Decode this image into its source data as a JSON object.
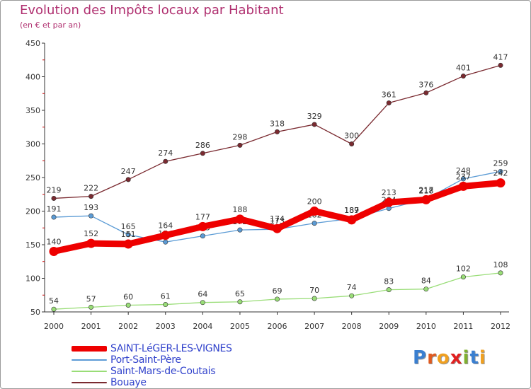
{
  "header": {
    "title": "Evolution des Impôts locaux par Habitant",
    "subtitle": "(en € et par an)"
  },
  "chart_data": {
    "type": "line",
    "title": "Evolution des Impôts locaux par Habitant",
    "subtitle": "(en € et par an)",
    "xlabel": "",
    "ylabel": "",
    "grid": false,
    "legend_position": "bottom-left",
    "categories": [
      "2000",
      "2001",
      "2002",
      "2003",
      "2004",
      "2005",
      "2006",
      "2007",
      "2008",
      "2009",
      "2010",
      "2011",
      "2012"
    ],
    "y_ticks": [
      50,
      100,
      150,
      200,
      250,
      300,
      350,
      400,
      450
    ],
    "ylim": [
      50,
      450
    ],
    "series": [
      {
        "name": "SAINT-LéGER-LES-VIGNES",
        "color": "#ee0000",
        "emphasis": "thick",
        "values": [
          140,
          152,
          151,
          164,
          177,
          188,
          174,
          200,
          187,
          213,
          217,
          237,
          242
        ],
        "labels": [
          "140",
          "152",
          "151",
          "164",
          "177",
          "188",
          "174",
          "200",
          "187",
          "213",
          "217",
          "237",
          "242"
        ]
      },
      {
        "name": "Port-Saint-Père",
        "color": "#5b9bd5",
        "emphasis": "thin",
        "values": [
          191,
          193,
          165,
          154,
          163,
          172,
          173,
          182,
          189,
          204,
          218,
          248,
          259
        ],
        "labels": [
          "191",
          "193",
          "165",
          "154",
          "163",
          "172",
          "173",
          "182",
          "189",
          "204",
          "218",
          "248",
          "259"
        ]
      },
      {
        "name": "Saint-Mars-de-Coutais",
        "color": "#99dd77",
        "emphasis": "thin",
        "values": [
          54,
          57,
          60,
          61,
          64,
          65,
          69,
          70,
          74,
          83,
          84,
          102,
          108
        ],
        "labels": [
          "54",
          "57",
          "60",
          "61",
          "64",
          "65",
          "69",
          "70",
          "74",
          "83",
          "84",
          "102",
          "108"
        ]
      },
      {
        "name": "Bouaye",
        "color": "#7a2a30",
        "emphasis": "thin",
        "values": [
          219,
          222,
          247,
          274,
          286,
          298,
          318,
          329,
          300,
          361,
          376,
          401,
          417
        ],
        "labels": [
          "219",
          "222",
          "247",
          "274",
          "286",
          "298",
          "318",
          "329",
          "300",
          "361",
          "376",
          "401",
          "417"
        ]
      }
    ]
  },
  "legend": {
    "items": [
      {
        "label": "SAINT-LéGER-LES-VIGNES",
        "color": "#ee0000"
      },
      {
        "label": "Port-Saint-Père",
        "color": "#5b9bd5"
      },
      {
        "label": "Saint-Mars-de-Coutais",
        "color": "#99dd77"
      },
      {
        "label": "Bouaye",
        "color": "#7a2a30"
      }
    ]
  },
  "logo": {
    "text": "Proxiti",
    "letters": [
      "P",
      "r",
      "o",
      "x",
      "i",
      "t",
      "i"
    ],
    "colors": [
      "#3a7fd0",
      "#e05a20",
      "#f0a020",
      "#e02020",
      "#80b030",
      "#3a7fd0",
      "#f0a020"
    ]
  }
}
